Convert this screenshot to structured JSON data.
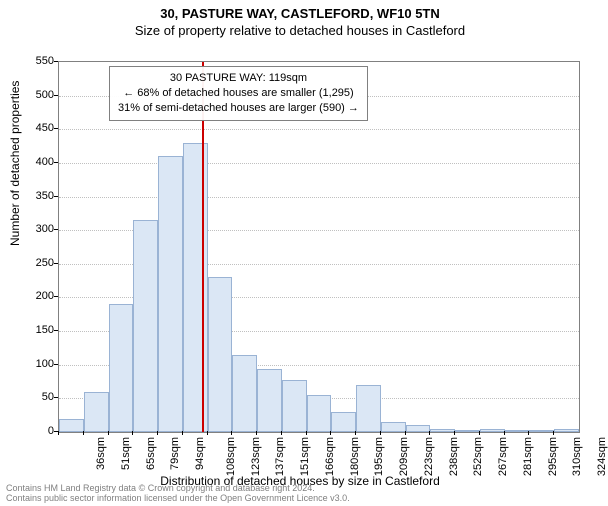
{
  "titles": {
    "main": "30, PASTURE WAY, CASTLEFORD, WF10 5TN",
    "sub": "Size of property relative to detached houses in Castleford"
  },
  "axes": {
    "x_label": "Distribution of detached houses by size in Castleford",
    "y_label": "Number of detached properties",
    "y_min": 0,
    "y_max": 550,
    "y_step": 50,
    "x_tick_labels": [
      "36sqm",
      "51sqm",
      "65sqm",
      "79sqm",
      "94sqm",
      "108sqm",
      "123sqm",
      "137sqm",
      "151sqm",
      "166sqm",
      "180sqm",
      "195sqm",
      "209sqm",
      "223sqm",
      "238sqm",
      "252sqm",
      "267sqm",
      "281sqm",
      "295sqm",
      "310sqm",
      "324sqm"
    ]
  },
  "chart": {
    "type": "histogram",
    "bar_color": "#dbe7f5",
    "bar_border_color": "#9ab3d4",
    "grid_color": "#c0c0c0",
    "plot_border_color": "#808080",
    "background_color": "#ffffff",
    "reference_line_color": "#cc0000",
    "reference_value_sqm": 119,
    "bin_start": 36,
    "bin_width_sqm": 14.4,
    "values": [
      20,
      60,
      190,
      315,
      410,
      430,
      230,
      115,
      93,
      78,
      55,
      30,
      70,
      15,
      10,
      5,
      3,
      5,
      2,
      3,
      5
    ]
  },
  "info_box": {
    "line1": "30 PASTURE WAY: 119sqm",
    "line2": "← 68% of detached houses are smaller (1,295)",
    "line3": "31% of semi-detached houses are larger (590) →"
  },
  "footer": {
    "line1": "Contains HM Land Registry data © Crown copyright and database right 2024.",
    "line2": "Contains public sector information licensed under the Open Government Licence v3.0."
  }
}
